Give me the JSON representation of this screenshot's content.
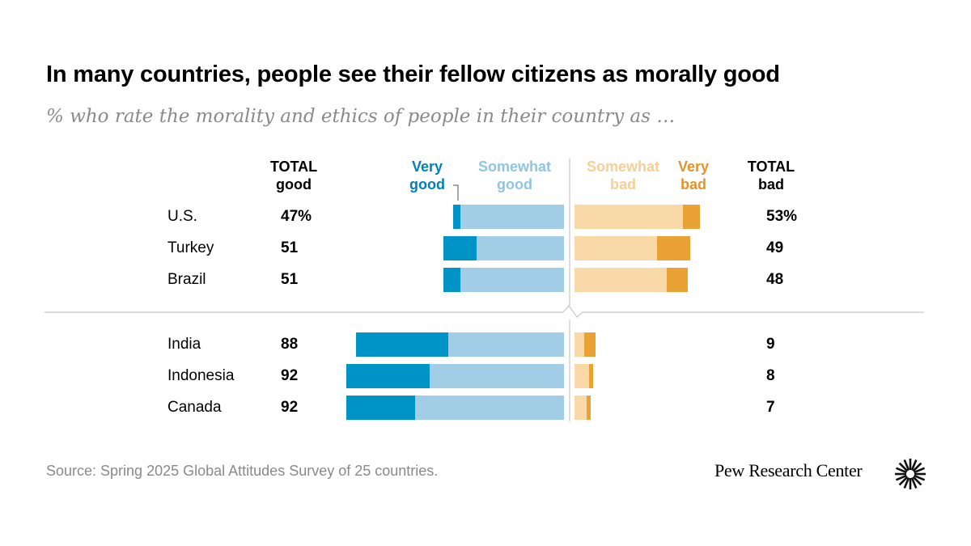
{
  "title": "In many countries, people see their fellow citizens as morally good",
  "subtitle": "% who rate the morality and ethics of people in their country as …",
  "headers": {
    "total_good_1": "TOTAL",
    "total_good_2": "good",
    "very_good_1": "Very",
    "very_good_2": "good",
    "somewhat_good_1": "Somewhat",
    "somewhat_good_2": "good",
    "somewhat_bad_1": "Somewhat",
    "somewhat_bad_2": "bad",
    "very_bad_1": "Very",
    "very_bad_2": "bad",
    "total_bad_1": "TOTAL",
    "total_bad_2": "bad"
  },
  "colors": {
    "very_good": "#0093C6",
    "somewhat_good": "#A2CDE6",
    "somewhat_bad": "#F9D9A8",
    "very_bad": "#EBA235",
    "very_good_text": "#0080B5",
    "somewhat_good_text": "#8FC5E3",
    "somewhat_bad_text": "#F6CF96",
    "very_bad_text": "#E0942A",
    "divider": "#c8c8c8"
  },
  "source": "Source: Spring 2025 Global Attitudes Survey of 25 countries.",
  "brand": "Pew Research Center",
  "logo_icon": "pew-sunburst-icon",
  "chart_data": {
    "type": "diverging-stacked-bar",
    "note": "Two groups separated by a broken-axis divider",
    "series": [
      {
        "name": "Very good",
        "side": "good"
      },
      {
        "name": "Somewhat good",
        "side": "good"
      },
      {
        "name": "Somewhat bad",
        "side": "bad"
      },
      {
        "name": "Very bad",
        "side": "bad"
      }
    ],
    "rows": [
      {
        "country": "U.S.",
        "very_good": 3,
        "somewhat_good": 44,
        "somewhat_bad": 46,
        "very_bad": 7,
        "total_good": "47%",
        "total_bad": "53%",
        "group": 1
      },
      {
        "country": "Turkey",
        "very_good": 14,
        "somewhat_good": 37,
        "somewhat_bad": 35,
        "very_bad": 14,
        "total_good": "51",
        "total_bad": "49",
        "group": 1
      },
      {
        "country": "Brazil",
        "very_good": 7,
        "somewhat_good": 44,
        "somewhat_bad": 39,
        "very_bad": 9,
        "total_good": "51",
        "total_bad": "48",
        "group": 1
      },
      {
        "country": "India",
        "very_good": 39,
        "somewhat_good": 49,
        "somewhat_bad": 4,
        "very_bad": 5,
        "total_good": "88",
        "total_bad": "9",
        "group": 2
      },
      {
        "country": "Indonesia",
        "very_good": 35,
        "somewhat_good": 57,
        "somewhat_bad": 6,
        "very_bad": 2,
        "total_good": "92",
        "total_bad": "8",
        "group": 2
      },
      {
        "country": "Canada",
        "very_good": 29,
        "somewhat_good": 63,
        "somewhat_bad": 5,
        "very_bad": 2,
        "total_good": "92",
        "total_bad": "7",
        "group": 2
      }
    ]
  }
}
